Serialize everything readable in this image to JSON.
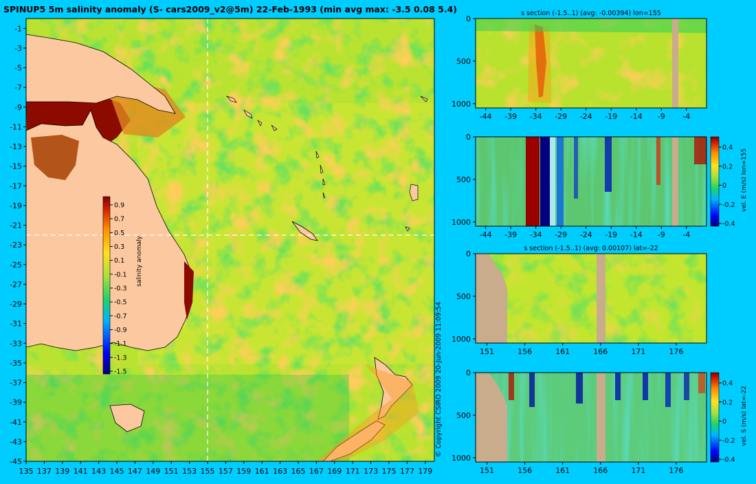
{
  "main_title": "SPINUP5 5m salinity anomaly (S- cars2009_v2@5m) 22-Feb-1993 (min avg max: -3.5 0.08 5.4)",
  "copyright": "© Copyright CSIRO 2009   20-Jun-2009 11:09:54",
  "colors": {
    "background": "#00cdff",
    "land": "#fcc8a0",
    "section_mask": "#c8ac8c",
    "anomaly_base": "#b7e22e"
  },
  "colorbar_labels": {
    "salinity": "salinity anomaly",
    "vel_e": "vel. E (m/s) lon=155",
    "vel_s": "vel. S (m/s) lat=-22"
  },
  "chart_data": [
    {
      "type": "heatmap",
      "name": "map",
      "title": "SPINUP5 5m salinity anomaly (S- cars2009_v2@5m) 22-Feb-1993 (min avg max: -3.5 0.08 5.4)",
      "xlim": [
        135,
        180
      ],
      "ylim": [
        -45,
        0
      ],
      "x_ticks": [
        "135",
        "137",
        "139",
        "141",
        "143",
        "145",
        "147",
        "149",
        "151",
        "153",
        "155",
        "157",
        "159",
        "161",
        "163",
        "165",
        "167",
        "169",
        "171",
        "173",
        "175",
        "177",
        "179"
      ],
      "y_ticks": [
        "-1",
        "-3",
        "-5",
        "-7",
        "-9",
        "-11",
        "-13",
        "-15",
        "-17",
        "-19",
        "-21",
        "-23",
        "-25",
        "-27",
        "-29",
        "-31",
        "-33",
        "-35",
        "-37",
        "-39",
        "-41",
        "-43",
        "-45"
      ],
      "dashed_lines": {
        "lon": 155,
        "lat": -22
      },
      "colorbar": {
        "label": "salinity anomaly",
        "ticks": [
          "0.9",
          "0.7",
          "0.5",
          "0.3",
          "0.1",
          "-0.1",
          "-0.3",
          "-0.5",
          "-0.7",
          "-0.9",
          "-1.1",
          "-1.3",
          "-1.5"
        ]
      }
    },
    {
      "type": "heatmap",
      "name": "s-section-lon155",
      "title": "s section (-1.5..1) (avg: -0.00394) lon=155",
      "xlim": [
        -46,
        0
      ],
      "ylim": [
        1050,
        0
      ],
      "x_ticks": [
        "-44",
        "-39",
        "-34",
        "-29",
        "-24",
        "-19",
        "-14",
        "-9",
        "-4"
      ],
      "y_ticks": [
        "0",
        "500",
        "1000"
      ]
    },
    {
      "type": "heatmap",
      "name": "vel-e-section-lon155",
      "title": "",
      "xlim": [
        -46,
        0
      ],
      "ylim": [
        1050,
        0
      ],
      "x_ticks": [
        "-44",
        "-39",
        "-34",
        "-29",
        "-24",
        "-19",
        "-14",
        "-9",
        "-4"
      ],
      "y_ticks": [
        "0",
        "500",
        "1000"
      ],
      "colorbar": {
        "label": "vel. E (m/s) lon=155",
        "ticks": [
          "0.4",
          "0.2",
          "0",
          "-0.2",
          "-0.4"
        ]
      }
    },
    {
      "type": "heatmap",
      "name": "s-section-lat-22",
      "title": "s section (-1.5..1) (avg: 0.00107) lat=-22",
      "xlim": [
        149.5,
        180
      ],
      "ylim": [
        1050,
        0
      ],
      "x_ticks": [
        "151",
        "156",
        "161",
        "166",
        "171",
        "176"
      ],
      "y_ticks": [
        "0",
        "500",
        "1000"
      ]
    },
    {
      "type": "heatmap",
      "name": "vel-s-section-lat-22",
      "title": "",
      "xlim": [
        149.5,
        180
      ],
      "ylim": [
        1050,
        0
      ],
      "x_ticks": [
        "151",
        "156",
        "161",
        "166",
        "171",
        "176"
      ],
      "y_ticks": [
        "0",
        "500",
        "1000"
      ],
      "colorbar": {
        "label": "vel. S (m/s) lat=-22",
        "ticks": [
          "0.4",
          "0.2",
          "0",
          "-0.2",
          "-0.4"
        ]
      }
    }
  ]
}
